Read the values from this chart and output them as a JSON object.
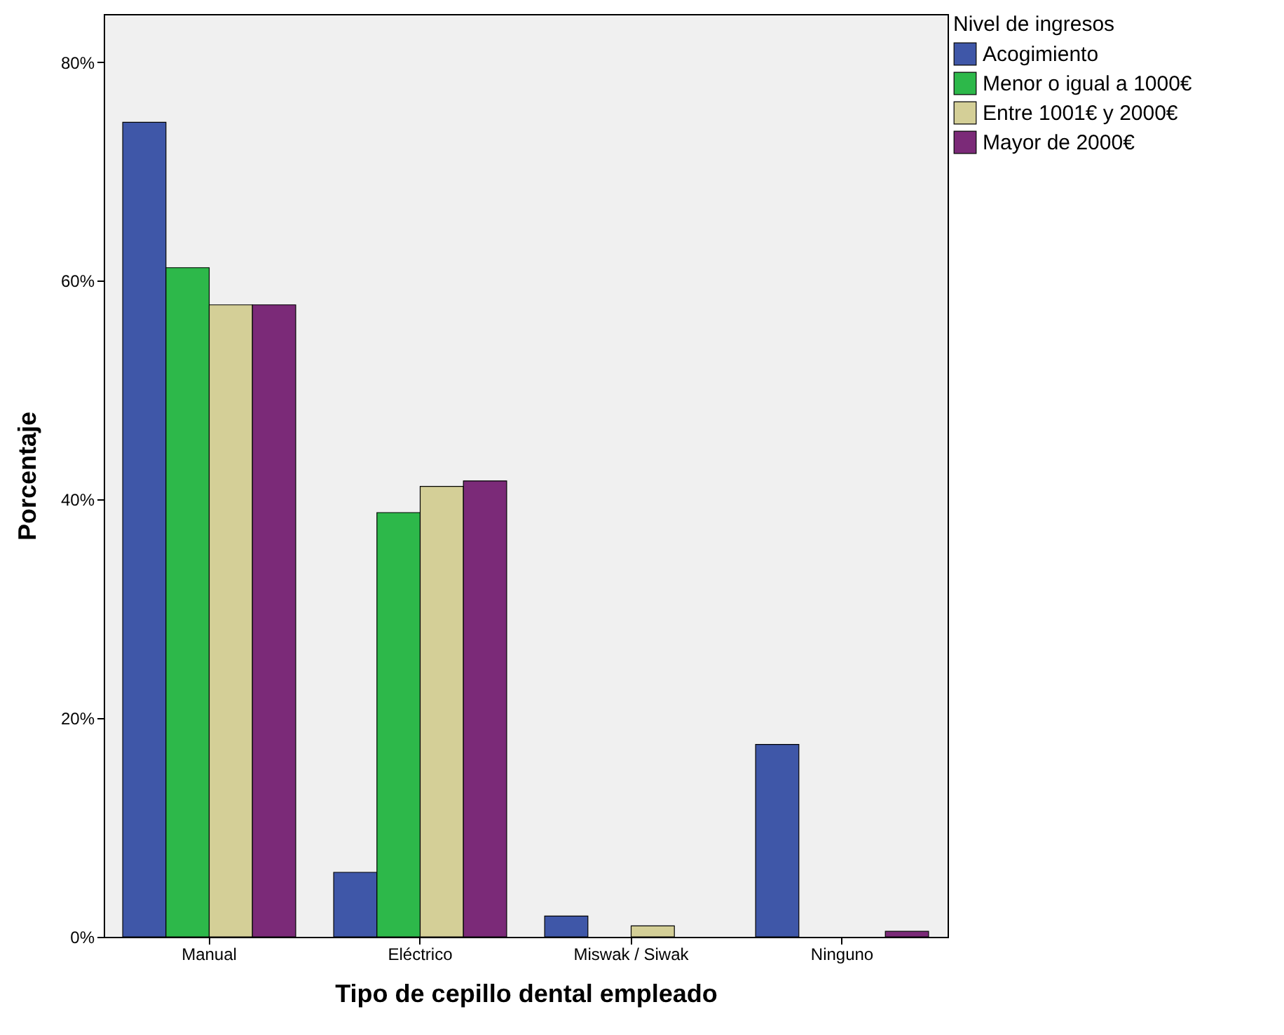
{
  "chart_data": {
    "type": "bar",
    "xlabel": "Tipo de cepillo dental empleado",
    "ylabel": "Porcentaje",
    "legend_title": "Nivel de ingresos",
    "categories": [
      "Manual",
      "Eléctrico",
      "Miswak / Siwak",
      "Ninguno"
    ],
    "series": [
      {
        "name": "Acogimiento",
        "color": "#3f57a8",
        "values": [
          74.5,
          5.9,
          1.9,
          17.6
        ]
      },
      {
        "name": "Menor o igual a 1000€",
        "color": "#2db84a",
        "values": [
          61.2,
          38.8,
          0,
          0
        ]
      },
      {
        "name": "Entre 1001€ y 2000€",
        "color": "#d4cf97",
        "values": [
          57.8,
          41.2,
          1.0,
          0
        ]
      },
      {
        "name": "Mayor de 2000€",
        "color": "#7b2a78",
        "values": [
          57.8,
          41.7,
          0,
          0.5
        ]
      }
    ],
    "ylim": [
      0,
      84.4
    ],
    "yticks": [
      {
        "value": 0,
        "label": "0%"
      },
      {
        "value": 20,
        "label": "20%"
      },
      {
        "value": 40,
        "label": "40%"
      },
      {
        "value": 60,
        "label": "60%"
      },
      {
        "value": 80,
        "label": "80%"
      }
    ],
    "grid": false,
    "legend": "top right"
  }
}
